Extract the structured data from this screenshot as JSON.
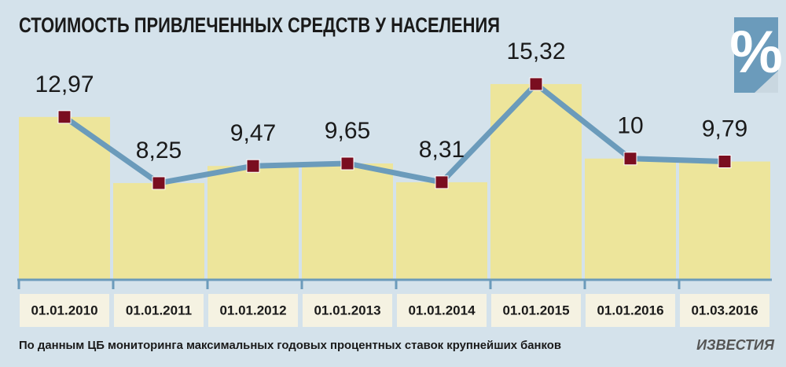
{
  "chart_data": {
    "type": "line",
    "title": "СТОИМОСТЬ ПРИВЛЕЧЕННЫХ СРЕДСТВ У НАСЕЛЕНИЯ",
    "icon_label": "%",
    "categories": [
      "01.01.2010",
      "01.01.2011",
      "01.01.2012",
      "01.01.2013",
      "01.01.2014",
      "01.01.2015",
      "01.01.2016",
      "01.03.2016"
    ],
    "values": [
      12.97,
      8.25,
      9.47,
      9.65,
      8.31,
      15.32,
      10,
      9.79
    ],
    "value_labels": [
      "12,97",
      "8,25",
      "9,47",
      "9,65",
      "8,31",
      "15,32",
      "10",
      "9,79"
    ],
    "bar_color": "#ede59b",
    "line_color": "#6b9bbb",
    "marker_color": "#7a0e20",
    "ylim": [
      0,
      17
    ],
    "footnote": "По данным ЦБ мониторинга максимальных годовых процентных ставок крупнейших банков",
    "source": "ИЗВЕСТИЯ"
  }
}
